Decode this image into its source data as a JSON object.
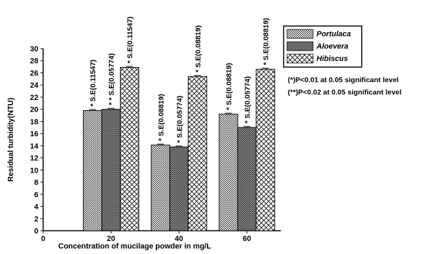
{
  "chart_data": {
    "type": "bar",
    "xlabel": "Concentration of mucilage powder in mg/L",
    "ylabel": "Residual turbidity(NTU)",
    "xticks": [
      "0",
      "20",
      "40",
      "60"
    ],
    "xlim": [
      0,
      70
    ],
    "ylim": [
      0,
      30
    ],
    "ytick_step": 2,
    "categories": [
      "20",
      "40",
      "60"
    ],
    "category_x": [
      20,
      40,
      60
    ],
    "series": [
      {
        "name": "Portulaca",
        "values": [
          19.8,
          14.1,
          19.2
        ],
        "labels": [
          "* S.E(0.11547)",
          "* S.E(0.08819)",
          "* S.E(0.08819)"
        ]
      },
      {
        "name": "Aloevera",
        "values": [
          20.0,
          13.8,
          17.0
        ],
        "labels": [
          "* * S.E(0.05774)",
          "* S.E(0.05774)",
          "* S.E(0.05774)"
        ]
      },
      {
        "name": "Hibiscus",
        "values": [
          26.9,
          25.4,
          26.6
        ],
        "labels": [
          "* S.E(0.11547)",
          "* S.E(0.08819)",
          "* S.E(0.08819)"
        ]
      }
    ],
    "legend_position": "top-right",
    "notes": [
      "(*)P<0.01 at 0.05 significant level",
      "(**)P<0.02 at 0.05 significant level"
    ],
    "grid": false
  }
}
